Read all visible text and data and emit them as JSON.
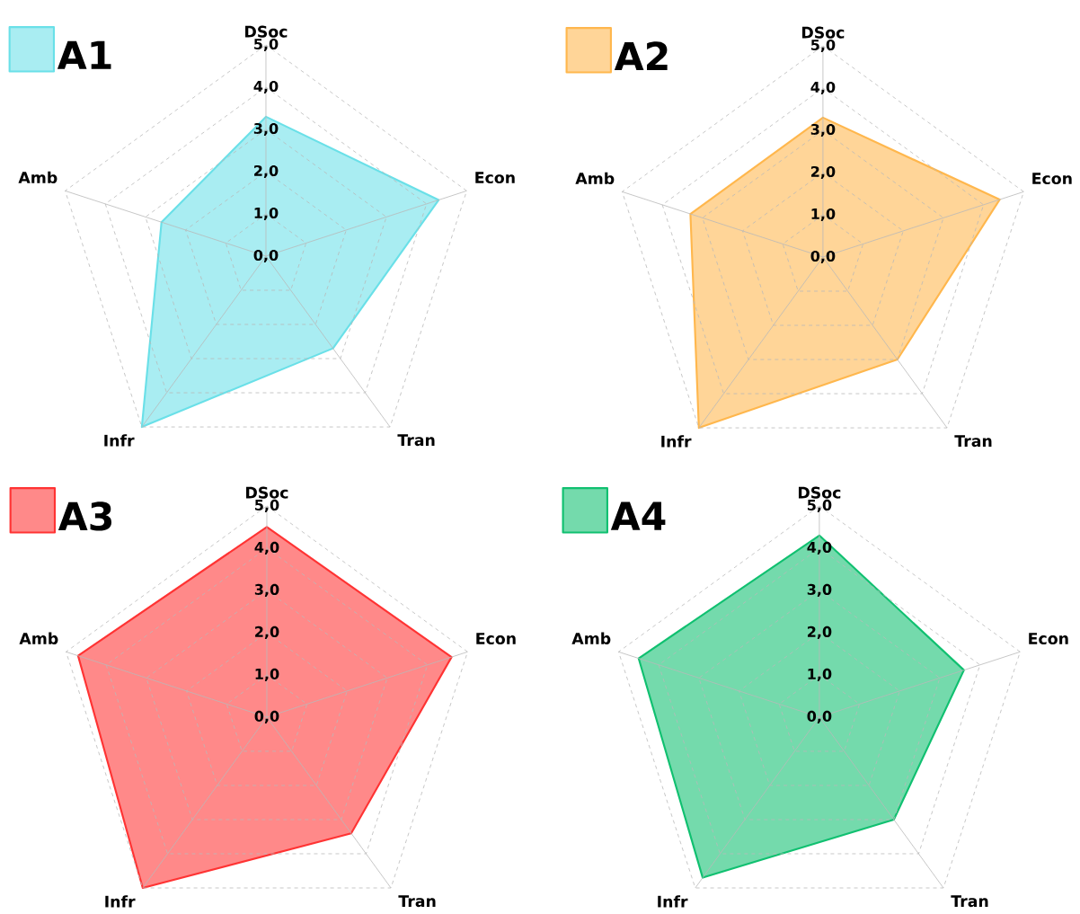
{
  "chart_data": [
    {
      "type": "radar",
      "categories": [
        "DSoc",
        "Econ",
        "Tran",
        "Infr",
        "Amb"
      ],
      "ylim": [
        0,
        5
      ],
      "yticks": [
        {
          "value": 0,
          "label": "0,0"
        },
        {
          "value": 1,
          "label": "1,0"
        },
        {
          "value": 2,
          "label": "2,0"
        },
        {
          "value": 3,
          "label": "3,0"
        },
        {
          "value": 4,
          "label": "4,0"
        },
        {
          "value": 5,
          "label": "5,0"
        }
      ],
      "grid": true,
      "legend": "top left",
      "series": [
        {
          "name": "A1",
          "color": "#6ae0e8",
          "values": [
            3.3,
            4.3,
            2.7,
            5.0,
            2.6
          ]
        }
      ]
    },
    {
      "type": "radar",
      "categories": [
        "DSoc",
        "Econ",
        "Tran",
        "Infr",
        "Amb"
      ],
      "ylim": [
        0,
        5
      ],
      "yticks": [
        {
          "value": 0,
          "label": "0,0"
        },
        {
          "value": 1,
          "label": "1,0"
        },
        {
          "value": 2,
          "label": "2,0"
        },
        {
          "value": 3,
          "label": "3,0"
        },
        {
          "value": 4,
          "label": "4,0"
        },
        {
          "value": 5,
          "label": "5,0"
        }
      ],
      "grid": true,
      "legend": "top left",
      "series": [
        {
          "name": "A2",
          "color": "#ffb74d",
          "values": [
            3.3,
            4.4,
            3.0,
            5.0,
            3.3
          ]
        }
      ]
    },
    {
      "type": "radar",
      "categories": [
        "DSoc",
        "Econ",
        "Tran",
        "Infr",
        "Amb"
      ],
      "ylim": [
        0,
        5
      ],
      "yticks": [
        {
          "value": 0,
          "label": "0,0"
        },
        {
          "value": 1,
          "label": "1,0"
        },
        {
          "value": 2,
          "label": "2,0"
        },
        {
          "value": 3,
          "label": "3,0"
        },
        {
          "value": 4,
          "label": "4,0"
        },
        {
          "value": 5,
          "label": "5,0"
        }
      ],
      "grid": true,
      "legend": "top left",
      "series": [
        {
          "name": "A3",
          "color": "#ff3333",
          "values": [
            4.5,
            4.6,
            3.4,
            5.0,
            4.7
          ]
        }
      ]
    },
    {
      "type": "radar",
      "categories": [
        "DSoc",
        "Econ",
        "Tran",
        "Infr",
        "Amb"
      ],
      "ylim": [
        0,
        5
      ],
      "yticks": [
        {
          "value": 0,
          "label": "0,0"
        },
        {
          "value": 1,
          "label": "1,0"
        },
        {
          "value": 2,
          "label": "2,0"
        },
        {
          "value": 3,
          "label": "3,0"
        },
        {
          "value": 4,
          "label": "4,0"
        },
        {
          "value": 5,
          "label": "5,0"
        }
      ],
      "grid": true,
      "legend": "top left",
      "series": [
        {
          "name": "A4",
          "color": "#10c070",
          "values": [
            4.3,
            3.6,
            3.0,
            4.7,
            4.5
          ]
        }
      ]
    }
  ]
}
